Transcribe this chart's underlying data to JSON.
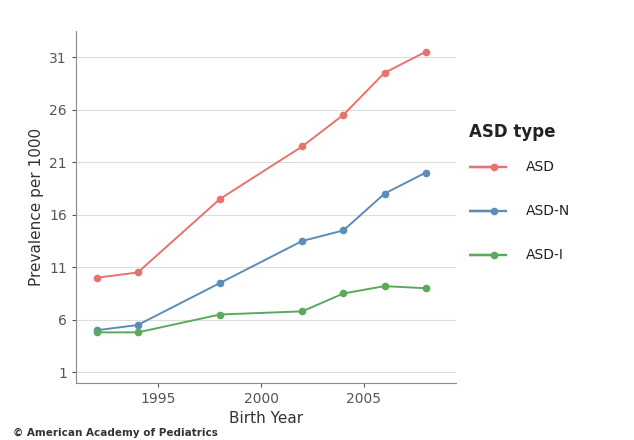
{
  "birth_years": [
    1992,
    1994,
    1998,
    2002,
    2004,
    2006,
    2008
  ],
  "ASD": [
    10.0,
    10.5,
    17.5,
    22.5,
    25.5,
    29.5,
    31.5
  ],
  "ASD_N": [
    5.0,
    5.5,
    9.5,
    13.5,
    14.5,
    18.0,
    20.0
  ],
  "ASD_I": [
    4.8,
    4.8,
    6.5,
    6.8,
    8.5,
    9.2,
    9.0
  ],
  "asd_color": "#E8736C",
  "asdn_color": "#5B8DB8",
  "asdi_color": "#5CA85C",
  "xlabel": "Birth Year",
  "ylabel": "Prevalence per 1000",
  "legend_title": "ASD type",
  "legend_labels": [
    "ASD",
    "ASD-N",
    "ASD-I"
  ],
  "yticks": [
    1,
    6,
    11,
    16,
    21,
    26,
    31
  ],
  "xticks": [
    1995,
    2000,
    2005
  ],
  "ylim": [
    0.0,
    33.5
  ],
  "xlim": [
    1991.0,
    2009.5
  ],
  "watermark": "© American Academy of Pediatrics",
  "background_color": "#ffffff",
  "marker": "o",
  "markersize": 4.5,
  "linewidth": 1.4,
  "axis_color": "#888888",
  "tick_color": "#555555",
  "grid_color": "#dddddd",
  "legend_title_fontsize": 12,
  "legend_fontsize": 10,
  "label_fontsize": 11,
  "tick_fontsize": 10
}
